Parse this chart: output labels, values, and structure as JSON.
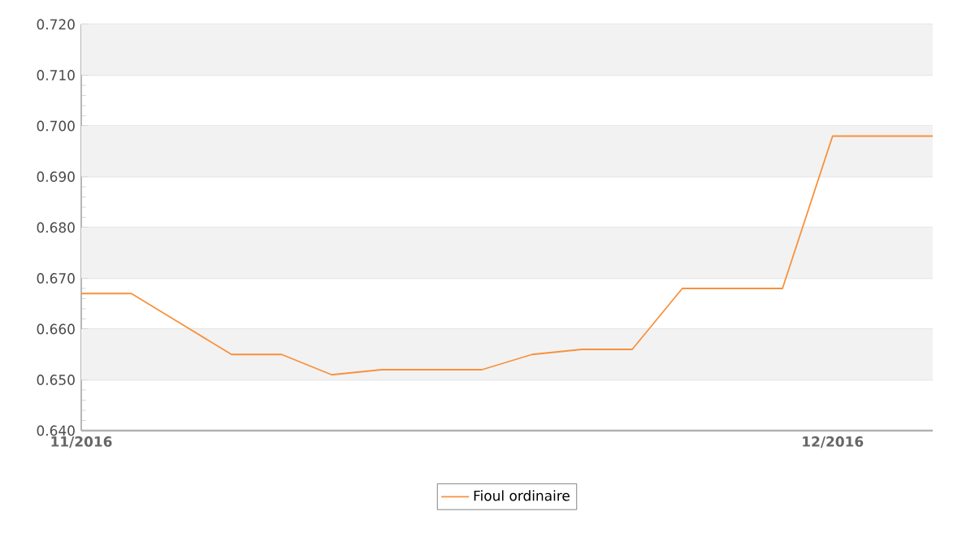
{
  "chart_data": {
    "type": "line",
    "categories": [
      "11/2016",
      null,
      null,
      null,
      null,
      null,
      null,
      null,
      null,
      null,
      null,
      null,
      null,
      null,
      null,
      "12/2016",
      null,
      null
    ],
    "series": [
      {
        "name": "Fioul ordinaire",
        "color": "#f7913d",
        "values": [
          0.667,
          0.667,
          0.661,
          0.655,
          0.655,
          0.651,
          0.652,
          0.652,
          0.652,
          0.655,
          0.656,
          0.656,
          0.668,
          0.668,
          0.668,
          0.698,
          0.698,
          0.698
        ]
      }
    ],
    "ylim": [
      0.64,
      0.72
    ],
    "yticks": [
      {
        "value": 0.64,
        "label": "0.640"
      },
      {
        "value": 0.65,
        "label": "0.650"
      },
      {
        "value": 0.66,
        "label": "0.660"
      },
      {
        "value": 0.67,
        "label": "0.670"
      },
      {
        "value": 0.68,
        "label": "0.680"
      },
      {
        "value": 0.69,
        "label": "0.690"
      },
      {
        "value": 0.7,
        "label": "0.700"
      },
      {
        "value": 0.71,
        "label": "0.710"
      },
      {
        "value": 0.72,
        "label": "0.720"
      }
    ],
    "grid": "y",
    "legend": "bottom",
    "marker": "none",
    "line_style": "solid"
  }
}
